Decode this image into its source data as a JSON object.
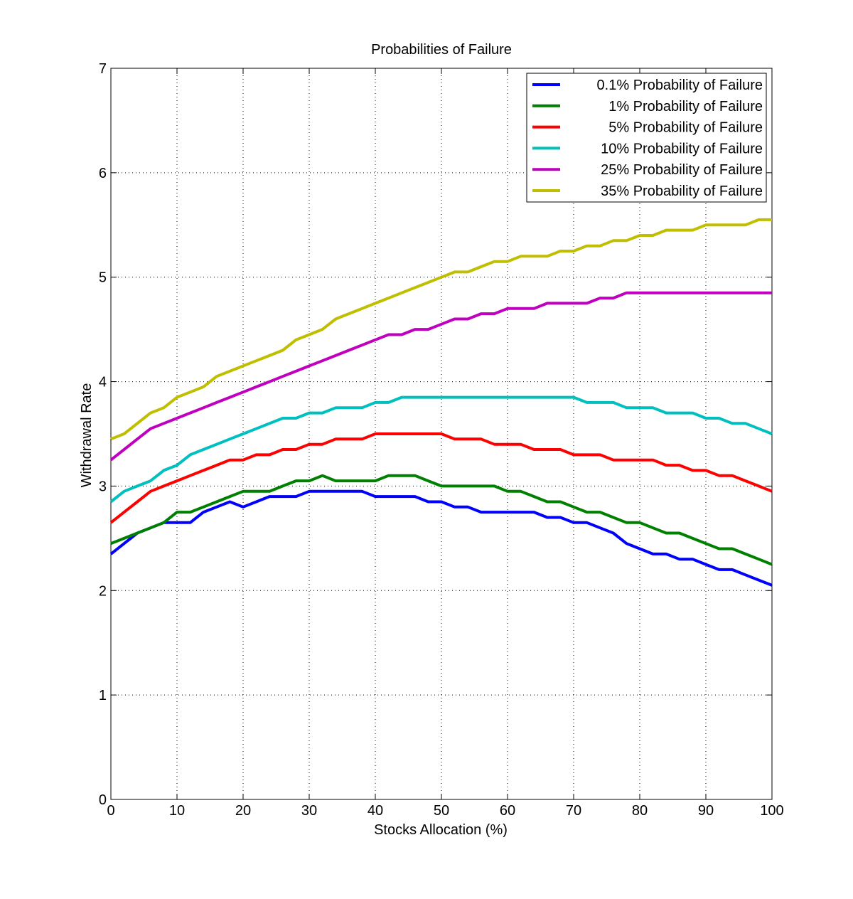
{
  "chart_data": {
    "type": "line",
    "title": "Probabilities of Failure",
    "xlabel": "Stocks Allocation (%)",
    "ylabel": "Withdrawal Rate",
    "xlim": [
      0,
      100
    ],
    "ylim": [
      0,
      7
    ],
    "xticks": [
      "0",
      "10",
      "20",
      "30",
      "40",
      "50",
      "60",
      "70",
      "80",
      "90",
      "100"
    ],
    "yticks": [
      "0",
      "1",
      "2",
      "3",
      "4",
      "5",
      "6",
      "7"
    ],
    "grid": true,
    "legend_position": "top-right",
    "x": [
      0,
      2,
      4,
      6,
      8,
      10,
      12,
      14,
      16,
      18,
      20,
      22,
      24,
      26,
      28,
      30,
      32,
      34,
      36,
      38,
      40,
      42,
      44,
      46,
      48,
      50,
      52,
      54,
      56,
      58,
      60,
      62,
      64,
      66,
      68,
      70,
      72,
      74,
      76,
      78,
      80,
      82,
      84,
      86,
      88,
      90,
      92,
      94,
      96,
      98,
      100
    ],
    "series": [
      {
        "name": "0.1% Probability of Failure",
        "color": "#0000ff",
        "values": [
          2.35,
          2.45,
          2.55,
          2.6,
          2.65,
          2.65,
          2.65,
          2.75,
          2.8,
          2.85,
          2.8,
          2.85,
          2.9,
          2.9,
          2.9,
          2.95,
          2.95,
          2.95,
          2.95,
          2.95,
          2.9,
          2.9,
          2.9,
          2.9,
          2.85,
          2.85,
          2.8,
          2.8,
          2.75,
          2.75,
          2.75,
          2.75,
          2.75,
          2.7,
          2.7,
          2.65,
          2.65,
          2.6,
          2.55,
          2.45,
          2.4,
          2.35,
          2.35,
          2.3,
          2.3,
          2.25,
          2.2,
          2.2,
          2.15,
          2.1,
          2.05
        ]
      },
      {
        "name": "1% Probability of Failure",
        "color": "#008000",
        "values": [
          2.45,
          2.5,
          2.55,
          2.6,
          2.65,
          2.75,
          2.75,
          2.8,
          2.85,
          2.9,
          2.95,
          2.95,
          2.95,
          3.0,
          3.05,
          3.05,
          3.1,
          3.05,
          3.05,
          3.05,
          3.05,
          3.1,
          3.1,
          3.1,
          3.05,
          3.0,
          3.0,
          3.0,
          3.0,
          3.0,
          2.95,
          2.95,
          2.9,
          2.85,
          2.85,
          2.8,
          2.75,
          2.75,
          2.7,
          2.65,
          2.65,
          2.6,
          2.55,
          2.55,
          2.5,
          2.45,
          2.4,
          2.4,
          2.35,
          2.3,
          2.25
        ]
      },
      {
        "name": "5% Probability of Failure",
        "color": "#ff0000",
        "values": [
          2.65,
          2.75,
          2.85,
          2.95,
          3.0,
          3.05,
          3.1,
          3.15,
          3.2,
          3.25,
          3.25,
          3.3,
          3.3,
          3.35,
          3.35,
          3.4,
          3.4,
          3.45,
          3.45,
          3.45,
          3.5,
          3.5,
          3.5,
          3.5,
          3.5,
          3.5,
          3.45,
          3.45,
          3.45,
          3.4,
          3.4,
          3.4,
          3.35,
          3.35,
          3.35,
          3.3,
          3.3,
          3.3,
          3.25,
          3.25,
          3.25,
          3.25,
          3.2,
          3.2,
          3.15,
          3.15,
          3.1,
          3.1,
          3.05,
          3.0,
          2.95
        ]
      },
      {
        "name": "10% Probability of Failure",
        "color": "#00bfbf",
        "values": [
          2.85,
          2.95,
          3.0,
          3.05,
          3.15,
          3.2,
          3.3,
          3.35,
          3.4,
          3.45,
          3.5,
          3.55,
          3.6,
          3.65,
          3.65,
          3.7,
          3.7,
          3.75,
          3.75,
          3.75,
          3.8,
          3.8,
          3.85,
          3.85,
          3.85,
          3.85,
          3.85,
          3.85,
          3.85,
          3.85,
          3.85,
          3.85,
          3.85,
          3.85,
          3.85,
          3.85,
          3.8,
          3.8,
          3.8,
          3.75,
          3.75,
          3.75,
          3.7,
          3.7,
          3.7,
          3.65,
          3.65,
          3.6,
          3.6,
          3.55,
          3.5
        ]
      },
      {
        "name": "25% Probability of Failure",
        "color": "#bf00bf",
        "values": [
          3.25,
          3.35,
          3.45,
          3.55,
          3.6,
          3.65,
          3.7,
          3.75,
          3.8,
          3.85,
          3.9,
          3.95,
          4.0,
          4.05,
          4.1,
          4.15,
          4.2,
          4.25,
          4.3,
          4.35,
          4.4,
          4.45,
          4.45,
          4.5,
          4.5,
          4.55,
          4.6,
          4.6,
          4.65,
          4.65,
          4.7,
          4.7,
          4.7,
          4.75,
          4.75,
          4.75,
          4.75,
          4.8,
          4.8,
          4.85,
          4.85,
          4.85,
          4.85,
          4.85,
          4.85,
          4.85,
          4.85,
          4.85,
          4.85,
          4.85,
          4.85
        ]
      },
      {
        "name": "35% Probability of Failure",
        "color": "#bfbf00",
        "values": [
          3.45,
          3.5,
          3.6,
          3.7,
          3.75,
          3.85,
          3.9,
          3.95,
          4.05,
          4.1,
          4.15,
          4.2,
          4.25,
          4.3,
          4.4,
          4.45,
          4.5,
          4.6,
          4.65,
          4.7,
          4.75,
          4.8,
          4.85,
          4.9,
          4.95,
          5.0,
          5.05,
          5.05,
          5.1,
          5.15,
          5.15,
          5.2,
          5.2,
          5.2,
          5.25,
          5.25,
          5.3,
          5.3,
          5.35,
          5.35,
          5.4,
          5.4,
          5.45,
          5.45,
          5.45,
          5.5,
          5.5,
          5.5,
          5.5,
          5.55,
          5.55
        ]
      }
    ]
  }
}
